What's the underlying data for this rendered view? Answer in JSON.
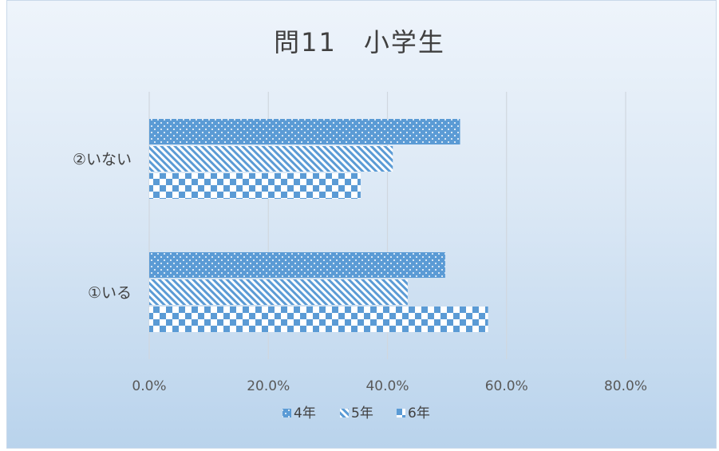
{
  "chart_data": {
    "type": "bar",
    "orientation": "horizontal",
    "title": "問11　小学生",
    "categories": [
      "②いない",
      "①いる"
    ],
    "series": [
      {
        "name": "4年",
        "values": [
          0.522,
          0.497
        ],
        "color": "#5b9bd5",
        "pattern": "dots"
      },
      {
        "name": "5年",
        "values": [
          0.409,
          0.434
        ],
        "color": "#5b9bd5",
        "pattern": "diagonal-stripes"
      },
      {
        "name": "6年",
        "values": [
          0.355,
          0.569
        ],
        "color": "#5b9bd5",
        "pattern": "checkerboard"
      }
    ],
    "x_ticks": [
      "0.0%",
      "20.0%",
      "40.0%",
      "60.0%",
      "80.0%"
    ],
    "xlim": [
      0,
      0.8
    ],
    "grid": "vertical",
    "legend_position": "bottom"
  }
}
